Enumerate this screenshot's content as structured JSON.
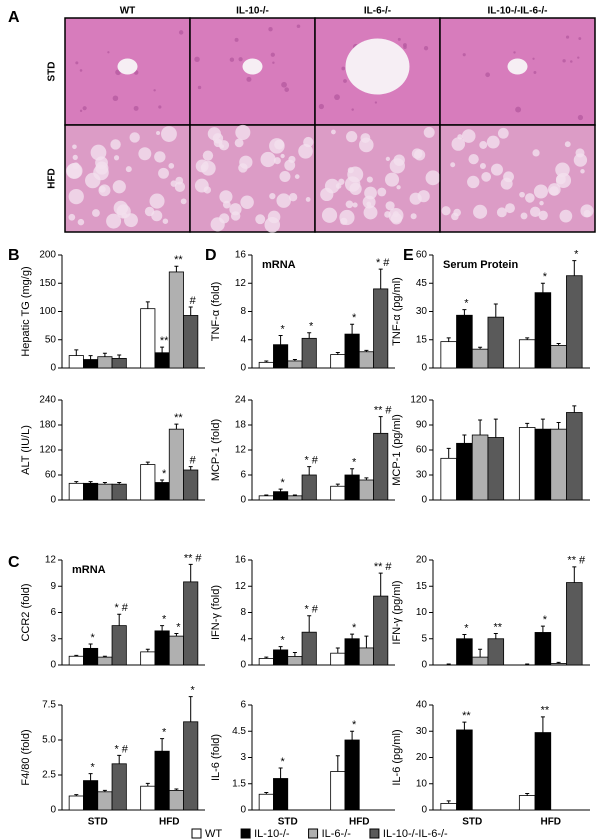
{
  "panels": {
    "a": "A",
    "b": "B",
    "c": "C",
    "d": "D",
    "e": "E"
  },
  "histology": {
    "columns": [
      "WT",
      "IL-10-/-",
      "IL-6-/-",
      "IL-10-/-IL-6-/-"
    ],
    "rows": [
      "STD",
      "HFD"
    ]
  },
  "legend": [
    {
      "name": "WT",
      "color": "#ffffff"
    },
    {
      "name": "IL-10-/-",
      "color": "#000000"
    },
    {
      "name": "IL-6-/-",
      "color": "#b0b0b0"
    },
    {
      "name": "IL-10-/-IL-6-/-",
      "color": "#5a5a5a"
    }
  ],
  "chart_data": [
    {
      "type": "bar",
      "ylabel": "Hepatic TG (mg/g)",
      "ylim": [
        0,
        200
      ],
      "yticks": [
        0,
        50,
        100,
        150,
        200
      ],
      "series": [
        {
          "values": [
            22,
            105
          ],
          "errors": [
            10,
            12
          ],
          "labels": [
            null,
            null
          ]
        },
        {
          "values": [
            15,
            27
          ],
          "errors": [
            7,
            10
          ],
          "labels": [
            null,
            "**"
          ]
        },
        {
          "values": [
            20,
            170
          ],
          "errors": [
            6,
            10
          ],
          "labels": [
            null,
            "**"
          ]
        },
        {
          "values": [
            17,
            93
          ],
          "errors": [
            6,
            15
          ],
          "labels": [
            null,
            "#"
          ]
        }
      ]
    },
    {
      "type": "bar",
      "ylabel": "ALT (IU/L)",
      "ylim": [
        0,
        240
      ],
      "yticks": [
        0,
        60,
        120,
        180,
        240
      ],
      "series": [
        {
          "values": [
            40,
            85
          ],
          "errors": [
            4,
            6
          ],
          "labels": [
            null,
            null
          ]
        },
        {
          "values": [
            40,
            42
          ],
          "errors": [
            4,
            6
          ],
          "labels": [
            null,
            "*"
          ]
        },
        {
          "values": [
            38,
            170
          ],
          "errors": [
            4,
            12
          ],
          "labels": [
            null,
            "**"
          ]
        },
        {
          "values": [
            38,
            72
          ],
          "errors": [
            4,
            8
          ],
          "labels": [
            null,
            "#"
          ]
        }
      ]
    },
    {
      "type": "bar",
      "title": "mRNA",
      "ylabel": "CCR2 (fold)",
      "ylim": [
        0,
        12
      ],
      "yticks": [
        0,
        3,
        6,
        9,
        12
      ],
      "series": [
        {
          "values": [
            1.0,
            1.5
          ],
          "errors": [
            0.1,
            0.3
          ],
          "labels": [
            null,
            null
          ]
        },
        {
          "values": [
            1.9,
            3.9
          ],
          "errors": [
            0.5,
            0.6
          ],
          "labels": [
            "*",
            "*"
          ]
        },
        {
          "values": [
            0.9,
            3.3
          ],
          "errors": [
            0.1,
            0.3
          ],
          "labels": [
            null,
            "*"
          ]
        },
        {
          "values": [
            4.5,
            9.5
          ],
          "errors": [
            1.3,
            2.0
          ],
          "labels": [
            "* #",
            "** #"
          ]
        }
      ]
    },
    {
      "type": "bar",
      "ylabel": "F4/80 (fold)",
      "ylim": [
        0,
        7.5
      ],
      "yticks": [
        0,
        2.5,
        {
          "value": 5,
          "label": "5.0"
        },
        7.5
      ],
      "categories": [
        "STD",
        "HFD"
      ],
      "series": [
        {
          "values": [
            1.0,
            1.7
          ],
          "errors": [
            0.1,
            0.2
          ],
          "labels": [
            null,
            null
          ]
        },
        {
          "values": [
            2.1,
            4.2
          ],
          "errors": [
            0.5,
            0.9
          ],
          "labels": [
            "*",
            "*"
          ]
        },
        {
          "values": [
            1.3,
            1.4
          ],
          "errors": [
            0.1,
            0.1
          ],
          "labels": [
            null,
            null
          ]
        },
        {
          "values": [
            3.3,
            6.3
          ],
          "errors": [
            0.6,
            1.8
          ],
          "labels": [
            "* #",
            "*"
          ]
        }
      ]
    },
    {
      "type": "bar",
      "title": "mRNA",
      "ylabel": "TNF-α (fold)",
      "ylim": [
        0,
        16
      ],
      "yticks": [
        0,
        4,
        8,
        12,
        16
      ],
      "series": [
        {
          "values": [
            0.8,
            1.9
          ],
          "errors": [
            0.2,
            0.3
          ],
          "labels": [
            null,
            null
          ]
        },
        {
          "values": [
            3.3,
            4.8
          ],
          "errors": [
            1.3,
            1.4
          ],
          "labels": [
            "*",
            "*"
          ]
        },
        {
          "values": [
            1.0,
            2.3
          ],
          "errors": [
            0.2,
            0.2
          ],
          "labels": [
            null,
            null
          ]
        },
        {
          "values": [
            4.2,
            11.2
          ],
          "errors": [
            0.8,
            2.8
          ],
          "labels": [
            "*",
            "* #"
          ]
        }
      ]
    },
    {
      "type": "bar",
      "ylabel": "MCP-1 (fold)",
      "ylim": [
        0,
        24
      ],
      "yticks": [
        0,
        6,
        12,
        18,
        24
      ],
      "series": [
        {
          "values": [
            1,
            3.3
          ],
          "errors": [
            0.2,
            0.5
          ],
          "labels": [
            null,
            null
          ]
        },
        {
          "values": [
            2,
            6
          ],
          "errors": [
            0.6,
            1.5
          ],
          "labels": [
            "*",
            "*"
          ]
        },
        {
          "values": [
            1,
            4.8
          ],
          "errors": [
            0.2,
            0.5
          ],
          "labels": [
            null,
            null
          ]
        },
        {
          "values": [
            6,
            16
          ],
          "errors": [
            2,
            4
          ],
          "labels": [
            "* #",
            "** #"
          ]
        }
      ]
    },
    {
      "type": "bar",
      "ylabel": "IFN-γ (fold)",
      "ylim": [
        0,
        16
      ],
      "yticks": [
        0,
        4,
        8,
        12,
        16
      ],
      "series": [
        {
          "values": [
            1,
            1.8
          ],
          "errors": [
            0.2,
            0.8
          ],
          "labels": [
            null,
            null
          ]
        },
        {
          "values": [
            2.3,
            4
          ],
          "errors": [
            0.5,
            0.7
          ],
          "labels": [
            "*",
            "*"
          ]
        },
        {
          "values": [
            1.3,
            2.6
          ],
          "errors": [
            0.6,
            1.8
          ],
          "labels": [
            null,
            null
          ]
        },
        {
          "values": [
            5,
            10.5
          ],
          "errors": [
            2.5,
            3.5
          ],
          "labels": [
            "* #",
            "** #"
          ]
        }
      ]
    },
    {
      "type": "bar",
      "ylabel": "IL-6 (fold)",
      "ylim": [
        0,
        6
      ],
      "yticks": [
        0,
        1.5,
        3,
        4.5,
        6
      ],
      "categories": [
        "STD",
        "HFD"
      ],
      "series": [
        {
          "values": [
            0.9,
            2.2
          ],
          "errors": [
            0.1,
            0.9
          ],
          "labels": [
            null,
            null
          ]
        },
        {
          "values": [
            1.8,
            4
          ],
          "errors": [
            0.6,
            0.5
          ],
          "labels": [
            "*",
            "*"
          ]
        },
        {
          "values": [
            null,
            null
          ],
          "errors": [
            null,
            null
          ],
          "labels": [
            null,
            null
          ]
        },
        {
          "values": [
            null,
            null
          ],
          "errors": [
            null,
            null
          ],
          "labels": [
            null,
            null
          ]
        }
      ]
    },
    {
      "type": "bar",
      "title": "Serum Protein",
      "ylabel": "TNF-α (pg/ml)",
      "ylim": [
        0,
        60
      ],
      "yticks": [
        0,
        15,
        30,
        45,
        60
      ],
      "series": [
        {
          "values": [
            14,
            15
          ],
          "errors": [
            2,
            1
          ],
          "labels": [
            null,
            null
          ]
        },
        {
          "values": [
            28,
            40
          ],
          "errors": [
            3,
            5
          ],
          "labels": [
            "*",
            "*"
          ]
        },
        {
          "values": [
            10,
            12
          ],
          "errors": [
            1,
            1
          ],
          "labels": [
            null,
            null
          ]
        },
        {
          "values": [
            27,
            49
          ],
          "errors": [
            7,
            8
          ],
          "labels": [
            null,
            "*"
          ]
        }
      ]
    },
    {
      "type": "bar",
      "ylabel": "MCP-1 (pg/ml)",
      "ylim": [
        0,
        120
      ],
      "yticks": [
        0,
        30,
        60,
        90,
        120
      ],
      "series": [
        {
          "values": [
            50,
            87
          ],
          "errors": [
            12,
            5
          ],
          "labels": [
            null,
            null
          ]
        },
        {
          "values": [
            68,
            85
          ],
          "errors": [
            10,
            12
          ],
          "labels": [
            null,
            null
          ]
        },
        {
          "values": [
            78,
            85
          ],
          "errors": [
            18,
            8
          ],
          "labels": [
            null,
            null
          ]
        },
        {
          "values": [
            75,
            105
          ],
          "errors": [
            22,
            8
          ],
          "labels": [
            null,
            null
          ]
        }
      ]
    },
    {
      "type": "bar",
      "ylabel": "IFN-γ (pg/ml)",
      "ylim": [
        0,
        20
      ],
      "yticks": [
        0,
        5,
        10,
        15,
        20
      ],
      "series": [
        {
          "values": [
            0,
            0
          ],
          "errors": [
            0.2,
            0.2
          ],
          "labels": [
            null,
            null
          ]
        },
        {
          "values": [
            5,
            6.2
          ],
          "errors": [
            0.8,
            1.2
          ],
          "labels": [
            "*",
            "*"
          ]
        },
        {
          "values": [
            1.5,
            0.3
          ],
          "errors": [
            1.5,
            0.2
          ],
          "labels": [
            null,
            null
          ]
        },
        {
          "values": [
            5,
            15.7
          ],
          "errors": [
            1,
            3
          ],
          "labels": [
            "**",
            "** #"
          ]
        }
      ]
    },
    {
      "type": "bar",
      "ylabel": "IL-6 (pg/ml)",
      "ylim": [
        0,
        40
      ],
      "yticks": [
        0,
        10,
        20,
        30,
        40
      ],
      "categories": [
        "STD",
        "HFD"
      ],
      "series": [
        {
          "values": [
            2.5,
            5.5
          ],
          "errors": [
            1,
            0.8
          ],
          "labels": [
            null,
            null
          ]
        },
        {
          "values": [
            30.5,
            29.5
          ],
          "errors": [
            3,
            6
          ],
          "labels": [
            "**",
            "**"
          ]
        },
        {
          "values": [
            null,
            null
          ],
          "errors": [
            null,
            null
          ],
          "labels": [
            null,
            null
          ]
        },
        {
          "values": [
            null,
            null
          ],
          "errors": [
            null,
            null
          ],
          "labels": [
            null,
            null
          ]
        }
      ]
    }
  ]
}
